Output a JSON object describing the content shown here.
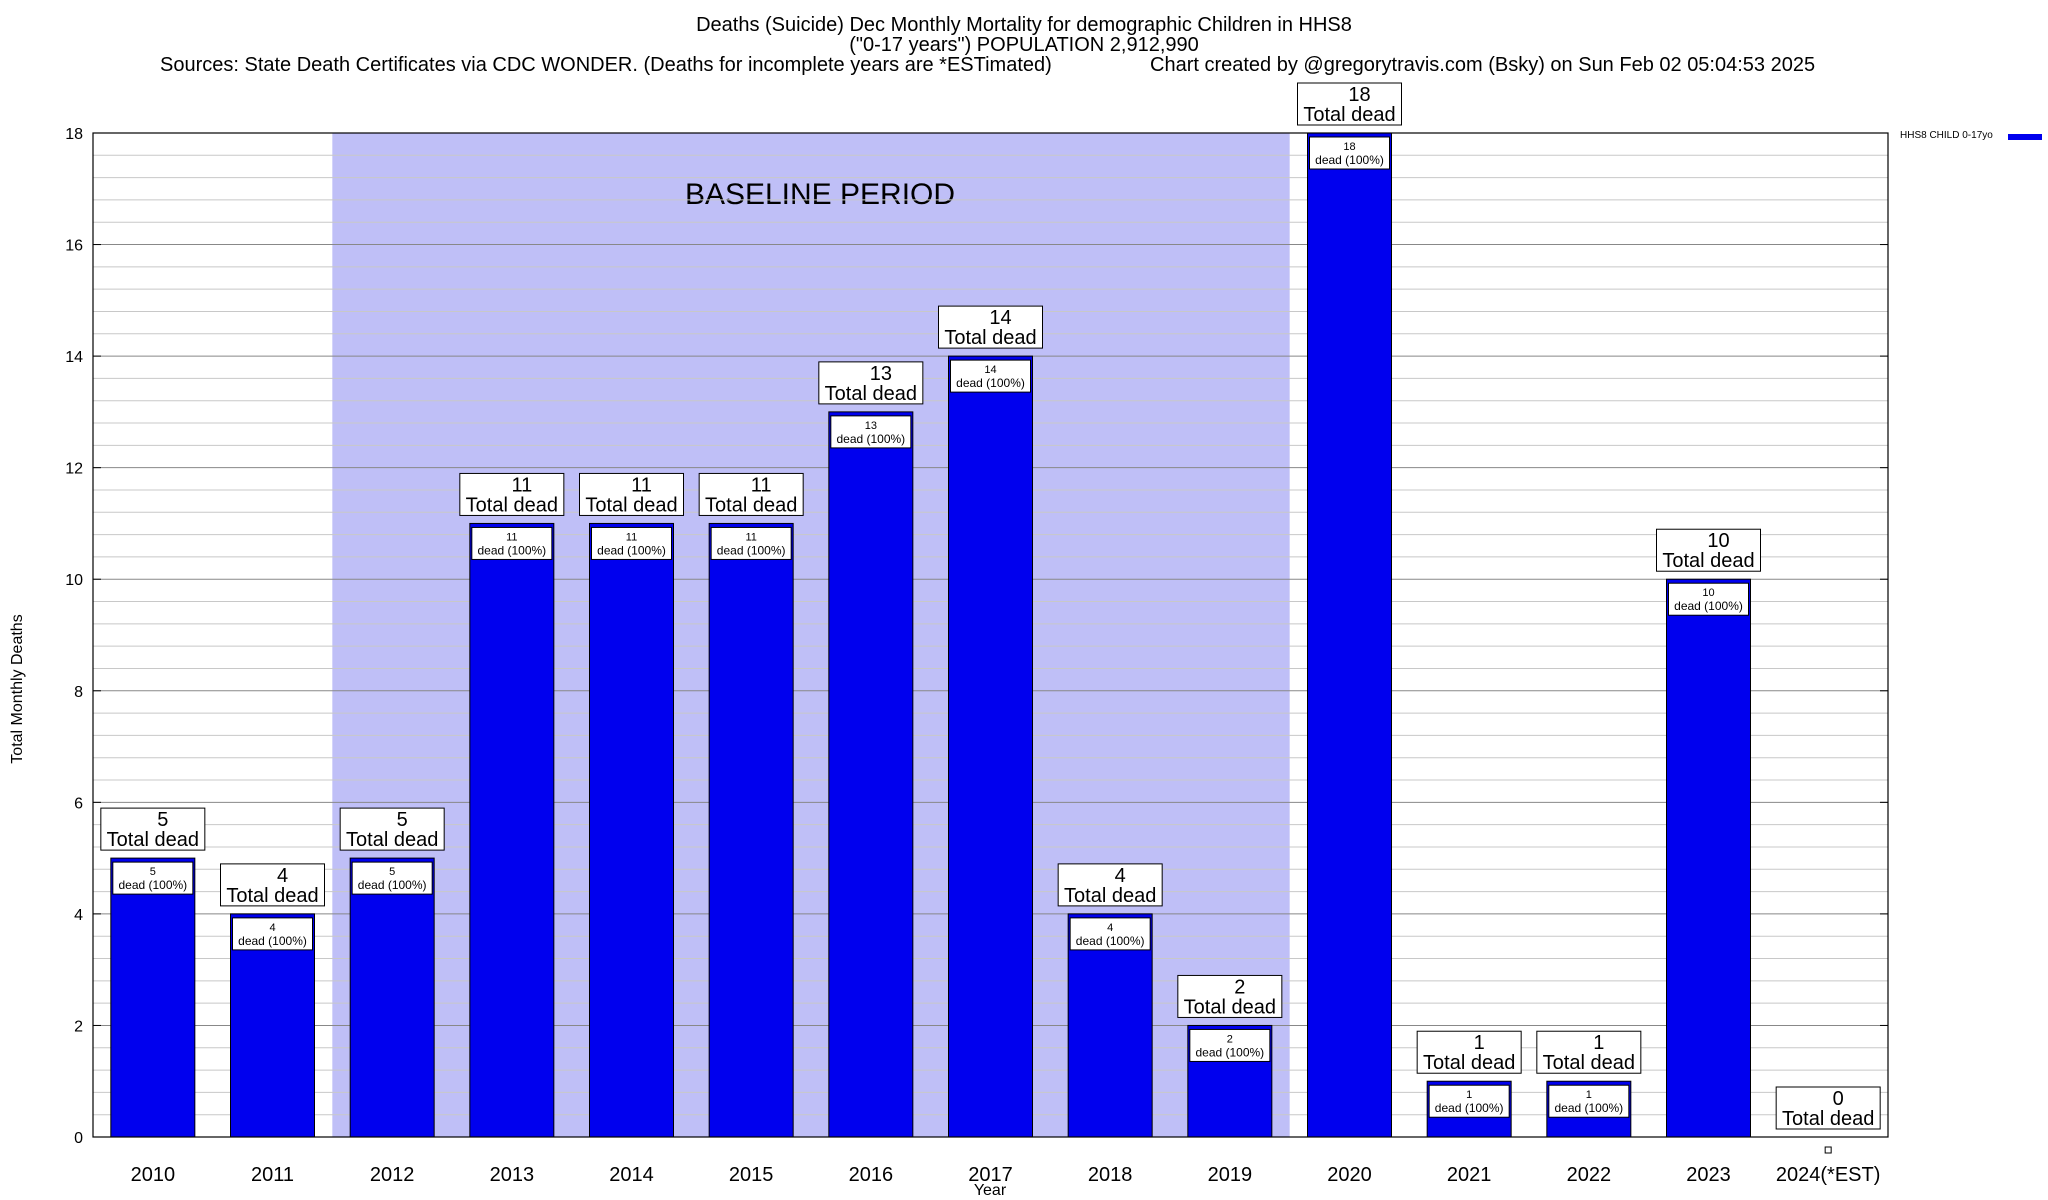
{
  "chart_data": {
    "type": "bar",
    "title_lines": [
      "Deaths (Suicide) Dec Monthly Mortality for demographic Children in HHS8",
      "(\"0-17 years\") POPULATION 2,912,990"
    ],
    "sources_text": "Sources: State Death Certificates via CDC WONDER. (Deaths for incomplete years are *ESTimated)",
    "credit_text": "Chart created by @gregorytravis.com (Bsky) on Sun Feb 02 05:04:53 2025",
    "xlabel": "Year",
    "ylabel": "Total Monthly Deaths",
    "ylim": [
      0,
      18
    ],
    "y_ticks": [
      0,
      2,
      4,
      6,
      8,
      10,
      12,
      14,
      16,
      18
    ],
    "grid": true,
    "legend_position": "top-right",
    "categories": [
      "2010",
      "2011",
      "2012",
      "2013",
      "2014",
      "2015",
      "2016",
      "2017",
      "2018",
      "2019",
      "2020",
      "2021",
      "2022",
      "2023",
      "2024(*EST)"
    ],
    "series": [
      {
        "name": "HHS8 CHILD 0-17yo",
        "color": "#0000ee",
        "values": [
          5,
          4,
          5,
          11,
          11,
          11,
          13,
          14,
          4,
          2,
          18,
          1,
          1,
          10,
          0
        ]
      }
    ],
    "total_label_suffix": "Total dead",
    "inner_label_suffix": "dead (100%)",
    "baseline_period": {
      "label": "BASELINE PERIOD",
      "start": "2012",
      "end": "2019",
      "color": "#bfbff7"
    }
  }
}
